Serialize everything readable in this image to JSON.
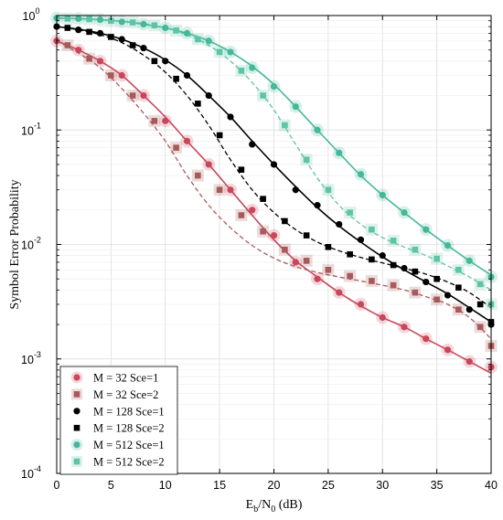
{
  "chart_data": {
    "type": "line",
    "xlabel": {
      "base": "E",
      "sub1": "b",
      "mid": "/N",
      "sub2": "0",
      "tail": " (dB)"
    },
    "ylabel": "Symbol Error Probability",
    "xlim": [
      0,
      40
    ],
    "ylim": [
      0.0001,
      1
    ],
    "yscale": "log",
    "x_ticks": [
      0,
      5,
      10,
      15,
      20,
      25,
      30,
      35,
      40
    ],
    "x_tick_labels": [
      "0",
      "5",
      "10",
      "15",
      "20",
      "25",
      "30",
      "35",
      "40"
    ],
    "y_ticks": [
      0.0001,
      0.001,
      0.01,
      0.1,
      1
    ],
    "y_tick_labels": [
      {
        "base": "10",
        "exp": "-4"
      },
      {
        "base": "10",
        "exp": "-3"
      },
      {
        "base": "10",
        "exp": "-2"
      },
      {
        "base": "10",
        "exp": "-1"
      },
      {
        "base": "10",
        "exp": "0"
      }
    ],
    "grid": true,
    "legend_position": "bottom-left",
    "series": [
      {
        "name": "M = 32 Sce=1",
        "color": "#c8475a",
        "marker": "circle",
        "line": "solid",
        "x": [
          0,
          2,
          4,
          6,
          8,
          10,
          12,
          14,
          16,
          18,
          20,
          22,
          24,
          26,
          28,
          30,
          32,
          34,
          36,
          38,
          40
        ],
        "y": [
          0.6,
          0.5,
          0.4,
          0.3,
          0.2,
          0.13,
          0.08,
          0.05,
          0.03,
          0.018,
          0.011,
          0.0072,
          0.0052,
          0.0038,
          0.0029,
          0.0023,
          0.0019,
          0.0015,
          0.0012,
          0.00095,
          0.00075
        ],
        "markers_x": [
          0,
          2,
          4,
          6,
          8,
          10,
          12,
          14,
          16,
          18,
          20,
          22,
          24,
          26,
          28,
          30,
          32,
          34,
          36,
          38,
          40
        ],
        "markers_y": [
          0.6,
          0.5,
          0.4,
          0.3,
          0.2,
          0.12,
          0.08,
          0.05,
          0.03,
          0.02,
          0.012,
          0.007,
          0.005,
          0.0038,
          0.003,
          0.0023,
          0.0019,
          0.0015,
          0.0012,
          0.00095,
          0.00085
        ]
      },
      {
        "name": "M = 32 Sce=2",
        "color": "#a85a5a",
        "marker": "square",
        "line": "dashed",
        "x": [
          0,
          2,
          4,
          6,
          8,
          10,
          12,
          14,
          16,
          18,
          20,
          22,
          24,
          26,
          28,
          30,
          32,
          34,
          36,
          38,
          40
        ],
        "y": [
          0.6,
          0.47,
          0.35,
          0.23,
          0.14,
          0.08,
          0.04,
          0.022,
          0.014,
          0.0098,
          0.0076,
          0.0064,
          0.0057,
          0.0052,
          0.0048,
          0.0044,
          0.004,
          0.0035,
          0.003,
          0.0023,
          0.0015
        ],
        "markers_x": [
          1,
          3,
          5,
          7,
          9,
          11,
          13,
          15,
          17,
          19,
          21,
          23,
          25,
          27,
          29,
          31,
          33,
          35,
          37,
          39,
          40
        ],
        "markers_y": [
          0.55,
          0.42,
          0.3,
          0.2,
          0.12,
          0.07,
          0.04,
          0.03,
          0.018,
          0.013,
          0.009,
          0.0072,
          0.006,
          0.0053,
          0.0048,
          0.0044,
          0.0038,
          0.0033,
          0.0027,
          0.0019,
          0.0013
        ]
      },
      {
        "name": "M = 128 Sce=1",
        "color": "#000000",
        "marker": "circle",
        "line": "solid",
        "x": [
          0,
          2,
          4,
          6,
          8,
          10,
          12,
          14,
          16,
          18,
          20,
          22,
          24,
          26,
          28,
          30,
          32,
          34,
          36,
          38,
          40
        ],
        "y": [
          0.8,
          0.76,
          0.7,
          0.62,
          0.52,
          0.41,
          0.3,
          0.2,
          0.13,
          0.08,
          0.05,
          0.032,
          0.021,
          0.0145,
          0.0105,
          0.0078,
          0.006,
          0.0047,
          0.0037,
          0.0028,
          0.0021
        ],
        "markers_x": [
          0,
          2,
          4,
          6,
          8,
          10,
          12,
          14,
          16,
          18,
          20,
          22,
          24,
          26,
          28,
          30,
          32,
          34,
          36,
          38,
          40
        ],
        "markers_y": [
          0.8,
          0.75,
          0.7,
          0.62,
          0.52,
          0.4,
          0.3,
          0.2,
          0.13,
          0.075,
          0.05,
          0.03,
          0.022,
          0.015,
          0.011,
          0.008,
          0.0062,
          0.0047,
          0.0036,
          0.0027,
          0.002
        ]
      },
      {
        "name": "M = 128 Sce=2",
        "color": "#000000",
        "marker": "square",
        "line": "dashed",
        "x": [
          0,
          2,
          4,
          6,
          8,
          10,
          12,
          14,
          16,
          18,
          20,
          22,
          24,
          26,
          28,
          30,
          32,
          34,
          36,
          38,
          40
        ],
        "y": [
          0.8,
          0.75,
          0.68,
          0.58,
          0.45,
          0.32,
          0.2,
          0.11,
          0.055,
          0.03,
          0.019,
          0.0135,
          0.0105,
          0.0088,
          0.0077,
          0.0069,
          0.0062,
          0.0055,
          0.0047,
          0.0038,
          0.0028
        ],
        "markers_x": [
          1,
          3,
          5,
          7,
          9,
          11,
          13,
          15,
          17,
          19,
          21,
          23,
          25,
          27,
          29,
          31,
          33,
          35,
          37,
          39,
          40
        ],
        "markers_y": [
          0.78,
          0.72,
          0.65,
          0.55,
          0.4,
          0.28,
          0.17,
          0.09,
          0.045,
          0.025,
          0.016,
          0.012,
          0.0095,
          0.0082,
          0.0074,
          0.0066,
          0.0058,
          0.005,
          0.0042,
          0.003,
          0.0021
        ]
      },
      {
        "name": "M = 512 Sce=1",
        "color": "#45b89a",
        "marker": "circle",
        "line": "solid",
        "x": [
          0,
          2,
          4,
          6,
          8,
          10,
          12,
          14,
          16,
          18,
          20,
          22,
          24,
          26,
          28,
          30,
          32,
          34,
          36,
          38,
          40
        ],
        "y": [
          0.95,
          0.94,
          0.92,
          0.89,
          0.84,
          0.78,
          0.7,
          0.6,
          0.48,
          0.36,
          0.25,
          0.16,
          0.1,
          0.063,
          0.04,
          0.027,
          0.019,
          0.0135,
          0.0098,
          0.0072,
          0.0054
        ],
        "markers_x": [
          0,
          2,
          4,
          6,
          8,
          10,
          12,
          14,
          16,
          18,
          20,
          22,
          24,
          26,
          28,
          30,
          32,
          34,
          36,
          38,
          40
        ],
        "markers_y": [
          0.95,
          0.94,
          0.92,
          0.88,
          0.84,
          0.78,
          0.7,
          0.6,
          0.48,
          0.35,
          0.24,
          0.16,
          0.1,
          0.063,
          0.041,
          0.027,
          0.019,
          0.0135,
          0.0098,
          0.0072,
          0.0052
        ]
      },
      {
        "name": "M = 512 Sce=2",
        "color": "#5fc4a6",
        "marker": "square",
        "line": "dashed",
        "x": [
          0,
          2,
          4,
          6,
          8,
          10,
          12,
          14,
          16,
          18,
          20,
          22,
          24,
          26,
          28,
          30,
          32,
          34,
          36,
          38,
          40
        ],
        "y": [
          0.95,
          0.94,
          0.92,
          0.89,
          0.85,
          0.78,
          0.68,
          0.55,
          0.4,
          0.26,
          0.15,
          0.075,
          0.038,
          0.022,
          0.015,
          0.0115,
          0.0095,
          0.008,
          0.0065,
          0.0052,
          0.004
        ],
        "markers_x": [
          1,
          3,
          5,
          7,
          9,
          11,
          13,
          15,
          17,
          19,
          21,
          23,
          25,
          27,
          29,
          31,
          33,
          35,
          37,
          39,
          40
        ],
        "markers_y": [
          0.94,
          0.93,
          0.9,
          0.87,
          0.82,
          0.74,
          0.62,
          0.48,
          0.33,
          0.2,
          0.11,
          0.055,
          0.03,
          0.019,
          0.0135,
          0.0108,
          0.009,
          0.0075,
          0.006,
          0.0045,
          0.003
        ]
      }
    ]
  }
}
